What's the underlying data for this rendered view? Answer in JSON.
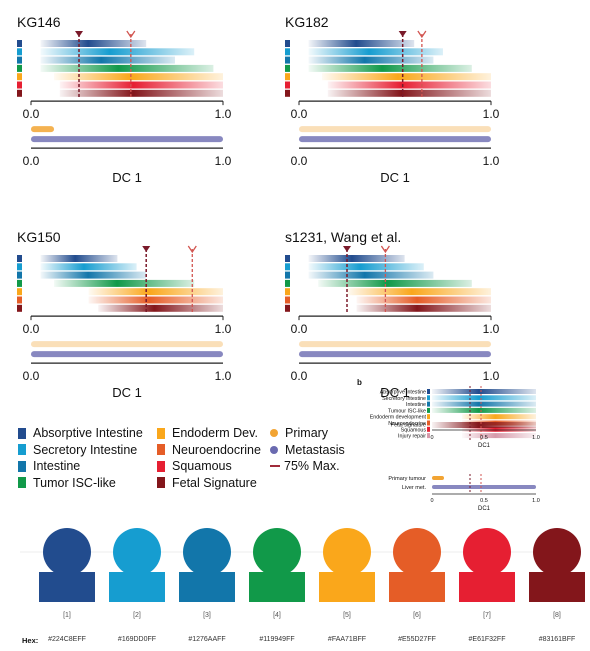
{
  "panels": [
    {
      "title": "KG146",
      "xlabel": "DC 1"
    },
    {
      "title": "KG182",
      "xlabel": "DC 1"
    },
    {
      "title": "KG150",
      "xlabel": "DC 1"
    },
    {
      "title": "s1231, Wang et al.",
      "xlabel": "DC 1"
    }
  ],
  "legend": {
    "col1": [
      "Absorptive Intestine",
      "Secretory Intestine",
      "Intestine",
      "Tumor ISC-like"
    ],
    "col2": [
      "Endoderm Dev.",
      "Neuroendocrine",
      "Squamous",
      "Fetal Signature"
    ],
    "col3": [
      "Primary",
      "Metastasis",
      "75% Max."
    ]
  },
  "inset": {
    "label": "b",
    "rows": [
      "Absorptive intestine",
      "Secretory intestine",
      "Intestine",
      "Tumour ISC-like",
      "Endoderm development",
      "Neuroendocrine",
      "Squamous",
      "Injury repair",
      "Fetal signature"
    ],
    "dot_rows": [
      "Primary tumour",
      "Liver met."
    ],
    "xlabel": "DC1",
    "ticks": [
      "0",
      "0.5",
      "1.0"
    ]
  },
  "palette": {
    "hex_label": "Hex:",
    "swatches": [
      {
        "index": "[1]",
        "hex": "#224C8EFF",
        "color": "#224C8E"
      },
      {
        "index": "[2]",
        "hex": "#169DD0FF",
        "color": "#169DD0"
      },
      {
        "index": "[3]",
        "hex": "#1276AAFF",
        "color": "#1276AA"
      },
      {
        "index": "[4]",
        "hex": "#119949FF",
        "color": "#119949"
      },
      {
        "index": "[5]",
        "hex": "#FAA71BFF",
        "color": "#FAA71B"
      },
      {
        "index": "[6]",
        "hex": "#E55D27FF",
        "color": "#E55D27"
      },
      {
        "index": "[7]",
        "hex": "#E61F32FF",
        "color": "#E61F32"
      },
      {
        "index": "[8]",
        "hex": "#83161BFF",
        "color": "#83161B"
      }
    ]
  },
  "chart_data": [
    {
      "type": "bar",
      "panel": "KG146",
      "ticks": [
        "0.0",
        "1.0"
      ],
      "xlim": [
        0,
        1
      ],
      "series": [
        {
          "category": "Absorptive Intestine",
          "range": [
            0.05,
            0.6
          ],
          "color": "#224C8E"
        },
        {
          "category": "Secretory Intestine",
          "range": [
            0.05,
            0.85
          ],
          "color": "#169DD0"
        },
        {
          "category": "Intestine",
          "range": [
            0.05,
            0.75
          ],
          "color": "#1276AA"
        },
        {
          "category": "Tumor ISC-like",
          "range": [
            0.05,
            0.95
          ],
          "color": "#119949"
        },
        {
          "category": "Endoderm Dev.",
          "range": [
            0.12,
            1.0
          ],
          "color": "#FAA71B"
        },
        {
          "category": "Neuroendocrine",
          "range": [
            0.15,
            1.0
          ],
          "color": "#E61F32"
        },
        {
          "category": "Fetal Signature",
          "range": [
            0.15,
            1.0
          ],
          "color": "#83161B"
        }
      ],
      "max_marker": 0.25,
      "max75_marker": 0.52,
      "primary_range": [
        0.0,
        0.12
      ],
      "metastasis_range": [
        0.0,
        1.0
      ]
    },
    {
      "type": "bar",
      "panel": "KG182",
      "ticks": [
        "0.0",
        "1.0"
      ],
      "xlim": [
        0,
        1
      ],
      "series": [
        {
          "category": "Absorptive Intestine",
          "range": [
            0.05,
            0.6
          ],
          "color": "#224C8E"
        },
        {
          "category": "Secretory Intestine",
          "range": [
            0.05,
            0.75
          ],
          "color": "#169DD0"
        },
        {
          "category": "Intestine",
          "range": [
            0.05,
            0.7
          ],
          "color": "#1276AA"
        },
        {
          "category": "Tumor ISC-like",
          "range": [
            0.05,
            0.9
          ],
          "color": "#119949"
        },
        {
          "category": "Endoderm Dev.",
          "range": [
            0.12,
            1.0
          ],
          "color": "#FAA71B"
        },
        {
          "category": "Neuroendocrine",
          "range": [
            0.15,
            1.0
          ],
          "color": "#E61F32"
        },
        {
          "category": "Fetal Signature",
          "range": [
            0.15,
            1.0
          ],
          "color": "#83161B"
        }
      ],
      "max_marker": 0.54,
      "max75_marker": 0.64,
      "primary_range": [
        0.0,
        1.0
      ],
      "metastasis_range": [
        0.0,
        1.0
      ]
    },
    {
      "type": "bar",
      "panel": "KG150",
      "ticks": [
        "0.0",
        "1.0"
      ],
      "xlim": [
        0,
        1
      ],
      "series": [
        {
          "category": "Absorptive Intestine",
          "range": [
            0.05,
            0.45
          ],
          "color": "#224C8E"
        },
        {
          "category": "Secretory Intestine",
          "range": [
            0.05,
            0.55
          ],
          "color": "#169DD0"
        },
        {
          "category": "Intestine",
          "range": [
            0.05,
            0.6
          ],
          "color": "#1276AA"
        },
        {
          "category": "Tumor ISC-like",
          "range": [
            0.12,
            0.85
          ],
          "color": "#119949"
        },
        {
          "category": "Endoderm Dev.",
          "range": [
            0.3,
            1.0
          ],
          "color": "#FAA71B"
        },
        {
          "category": "Neuroendocrine",
          "range": [
            0.3,
            1.0
          ],
          "color": "#E55D27"
        },
        {
          "category": "Fetal Signature",
          "range": [
            0.35,
            1.0
          ],
          "color": "#83161B"
        }
      ],
      "max_marker": 0.6,
      "max75_marker": 0.84,
      "primary_range": [
        0.0,
        1.0
      ],
      "metastasis_range": [
        0.0,
        1.0
      ]
    },
    {
      "type": "bar",
      "panel": "s1231, Wang et al.",
      "ticks": [
        "0.0",
        "1.0"
      ],
      "xlim": [
        0,
        1
      ],
      "series": [
        {
          "category": "Absorptive Intestine",
          "range": [
            0.05,
            0.55
          ],
          "color": "#224C8E"
        },
        {
          "category": "Secretory Intestine",
          "range": [
            0.05,
            0.65
          ],
          "color": "#169DD0"
        },
        {
          "category": "Intestine",
          "range": [
            0.05,
            0.7
          ],
          "color": "#1276AA"
        },
        {
          "category": "Tumor ISC-like",
          "range": [
            0.1,
            0.9
          ],
          "color": "#119949"
        },
        {
          "category": "Endoderm Dev.",
          "range": [
            0.25,
            1.0
          ],
          "color": "#FAA71B"
        },
        {
          "category": "Neuroendocrine",
          "range": [
            0.3,
            1.0
          ],
          "color": "#E55D27"
        },
        {
          "category": "Fetal Signature",
          "range": [
            0.3,
            1.0
          ],
          "color": "#83161B"
        }
      ],
      "max_marker": 0.25,
      "max75_marker": 0.45,
      "primary_range": [
        0.0,
        1.0
      ],
      "metastasis_range": [
        0.0,
        1.0
      ]
    }
  ]
}
